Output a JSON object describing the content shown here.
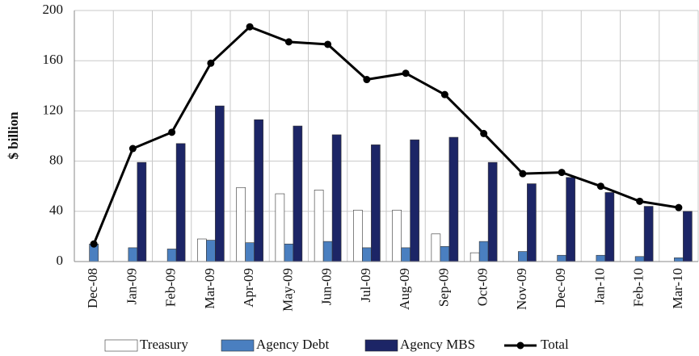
{
  "chart_data": {
    "type": "bar",
    "y_label": "$ billion",
    "categories": [
      "Dec-08",
      "Jan-09",
      "Feb-09",
      "Mar-09",
      "Apr-09",
      "May-09",
      "Jun-09",
      "Jul-09",
      "Aug-09",
      "Sep-09",
      "Oct-09",
      "Nov-09",
      "Dec-09",
      "Jan-10",
      "Feb-10",
      "Mar-10"
    ],
    "series": [
      {
        "name": "Treasury",
        "color": "#ffffff",
        "values": [
          0,
          0,
          0,
          18,
          59,
          54,
          57,
          41,
          41,
          22,
          7,
          0,
          0,
          0,
          0,
          0
        ]
      },
      {
        "name": "Agency Debt",
        "color": "#4a7fc0",
        "values": [
          14,
          11,
          10,
          17,
          15,
          14,
          16,
          11,
          11,
          12,
          16,
          8,
          5,
          5,
          4,
          3
        ]
      },
      {
        "name": "Agency MBS",
        "color": "#1c2566",
        "values": [
          0,
          79,
          94,
          124,
          113,
          108,
          101,
          93,
          97,
          99,
          79,
          62,
          67,
          55,
          44,
          40
        ]
      },
      {
        "name": "Total",
        "type": "line",
        "color": "#000000",
        "values": [
          14,
          90,
          103,
          158,
          187,
          175,
          173,
          145,
          150,
          133,
          102,
          70,
          71,
          60,
          48,
          43
        ]
      }
    ],
    "ylim": [
      0,
      200
    ],
    "yticks": [
      0,
      40,
      80,
      120,
      160,
      200
    ],
    "grid": true,
    "legend": "bottom"
  }
}
